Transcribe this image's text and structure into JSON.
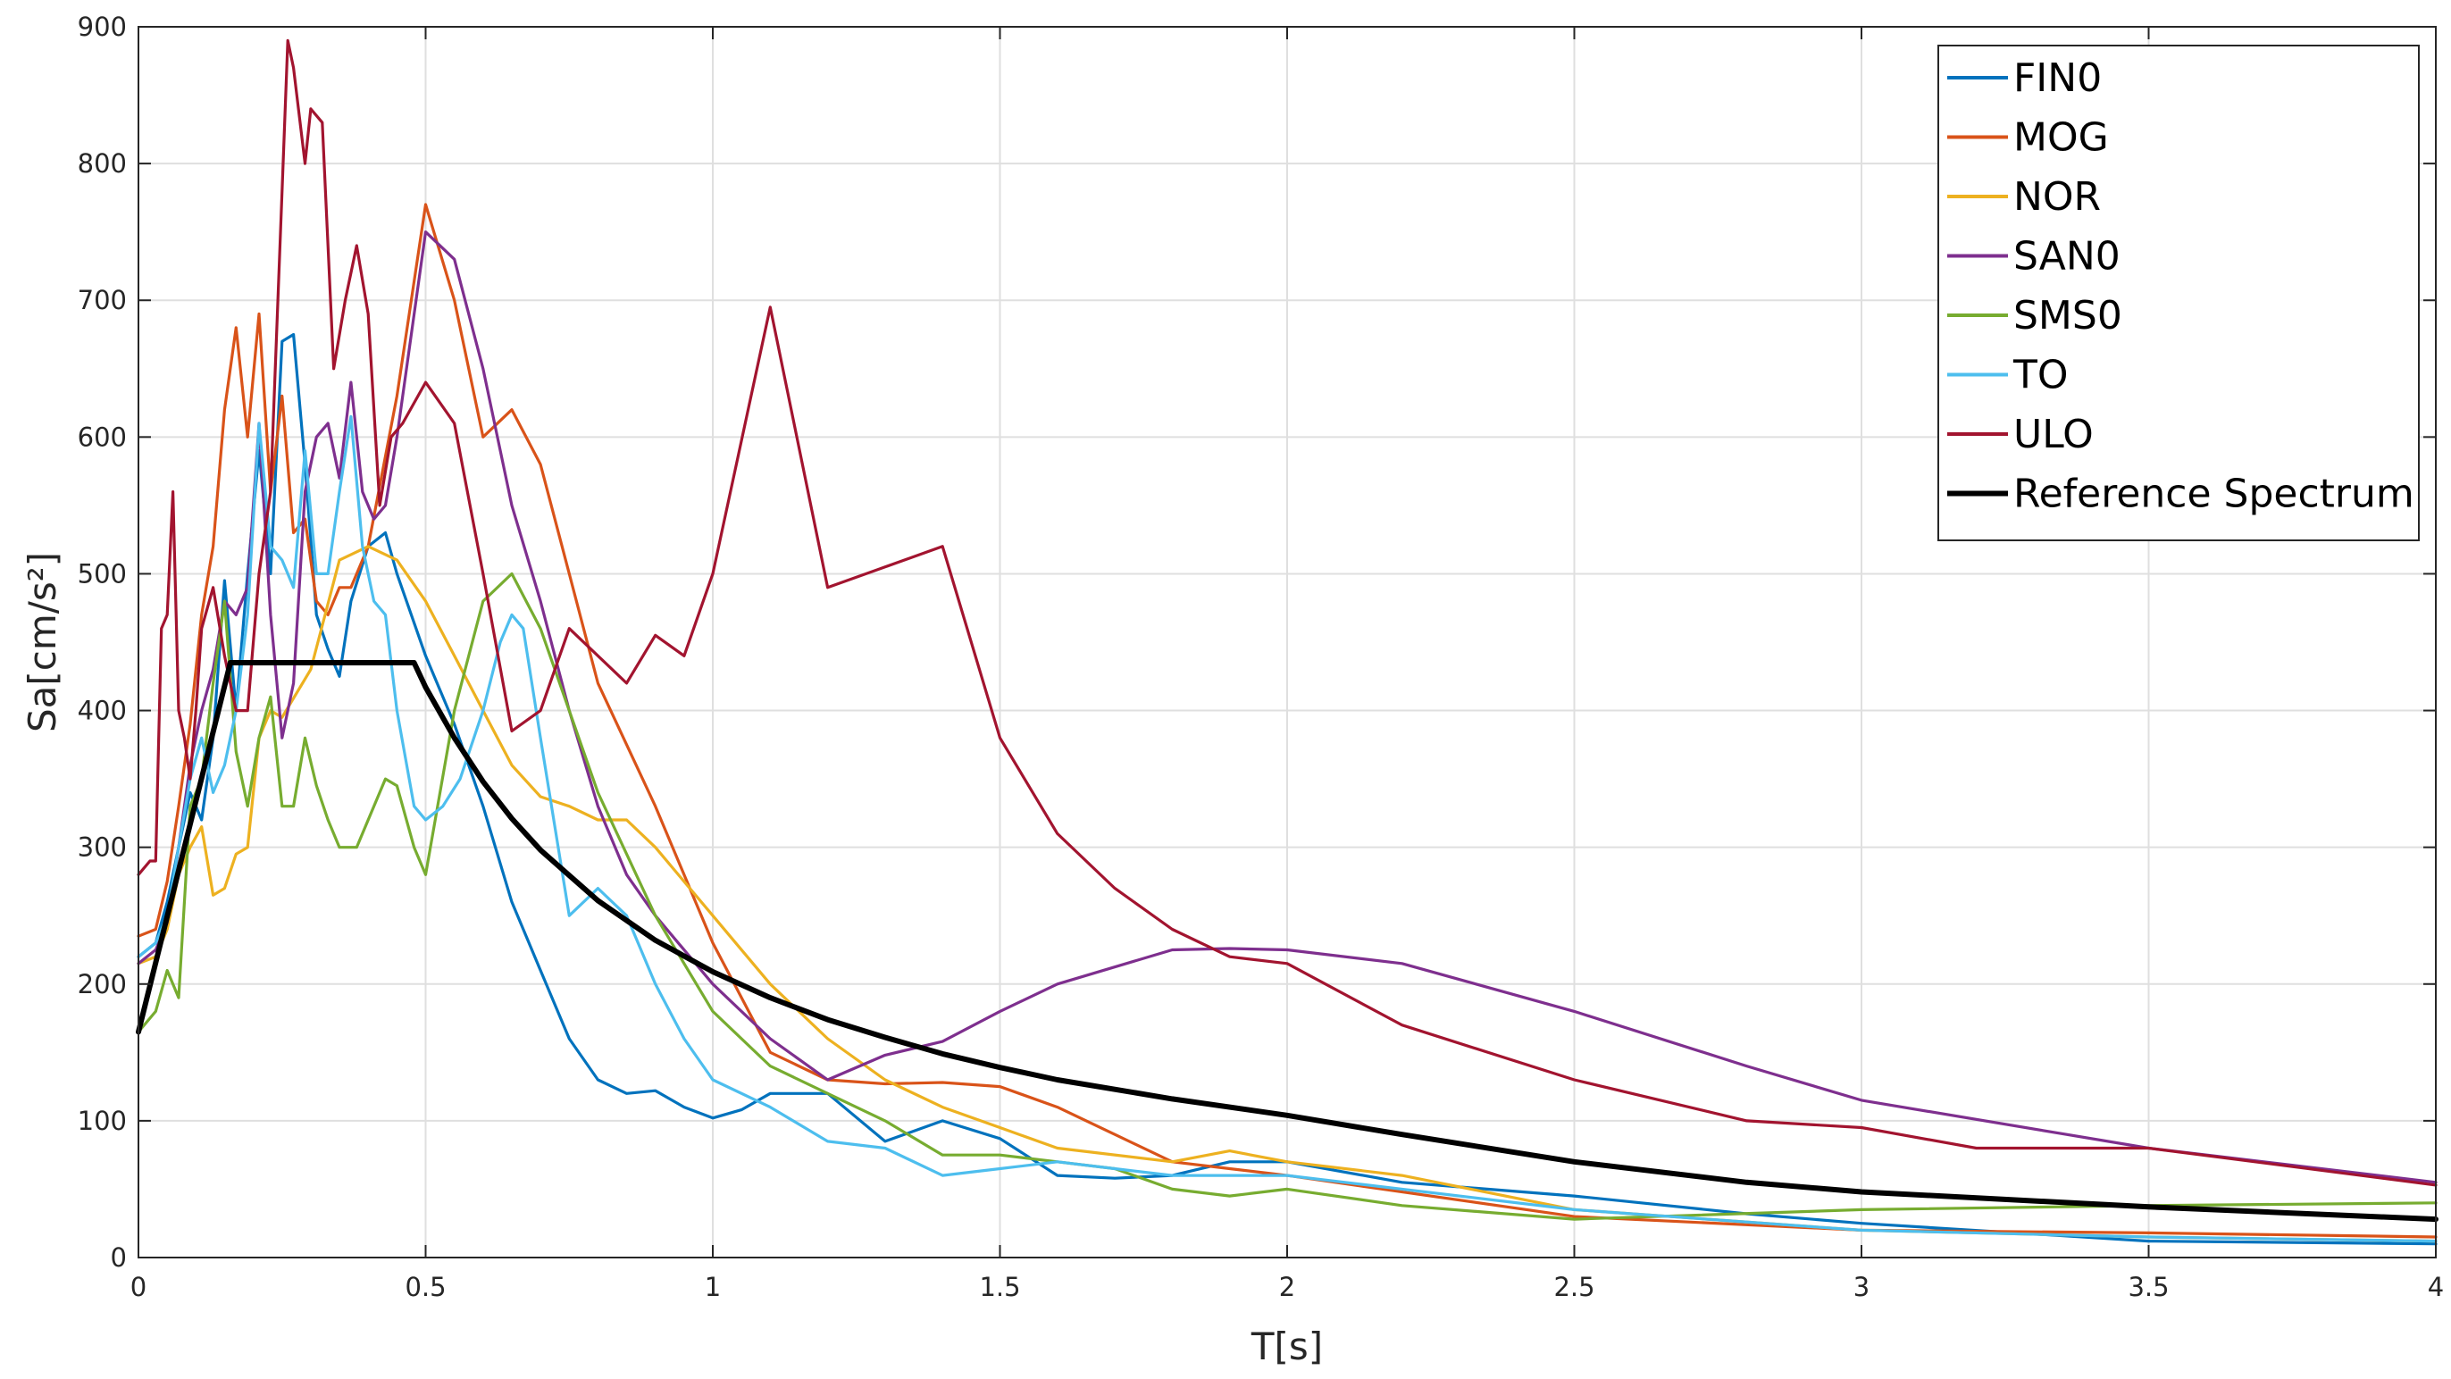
{
  "chart_data": {
    "type": "line",
    "xlabel": "T[s]",
    "ylabel": "Sa[cm/s²]",
    "xlim": [
      0,
      4
    ],
    "ylim": [
      0,
      900
    ],
    "xticks": [
      0,
      0.5,
      1,
      1.5,
      2,
      2.5,
      3,
      3.5,
      4
    ],
    "xtick_labels": [
      "0",
      "0.5",
      "1",
      "1.5",
      "2",
      "2.5",
      "3",
      "3.5",
      "4"
    ],
    "yticks": [
      0,
      100,
      200,
      300,
      400,
      500,
      600,
      700,
      800,
      900
    ],
    "ytick_labels": [
      "0",
      "100",
      "200",
      "300",
      "400",
      "500",
      "600",
      "700",
      "800",
      "900"
    ],
    "grid": true,
    "legend_position": "top-right",
    "series": [
      {
        "name": "FIN0",
        "color": "#0072BD",
        "x": [
          0,
          0.03,
          0.05,
          0.07,
          0.09,
          0.11,
          0.13,
          0.15,
          0.17,
          0.19,
          0.21,
          0.23,
          0.25,
          0.27,
          0.29,
          0.31,
          0.33,
          0.35,
          0.37,
          0.4,
          0.43,
          0.45,
          0.5,
          0.55,
          0.6,
          0.65,
          0.7,
          0.75,
          0.8,
          0.85,
          0.9,
          0.95,
          1.0,
          1.05,
          1.1,
          1.2,
          1.3,
          1.4,
          1.5,
          1.6,
          1.7,
          1.8,
          1.9,
          2.0,
          2.2,
          2.5,
          2.8,
          3.0,
          3.5,
          4.0
        ],
        "y": [
          220,
          230,
          260,
          300,
          340,
          320,
          380,
          495,
          400,
          500,
          590,
          500,
          670,
          675,
          580,
          470,
          445,
          425,
          480,
          520,
          530,
          500,
          440,
          390,
          330,
          260,
          210,
          160,
          130,
          120,
          122,
          110,
          102,
          108,
          120,
          120,
          85,
          100,
          87,
          60,
          58,
          60,
          70,
          70,
          55,
          45,
          32,
          25,
          12,
          10
        ]
      },
      {
        "name": "MOG",
        "color": "#D95319",
        "x": [
          0,
          0.03,
          0.05,
          0.07,
          0.09,
          0.11,
          0.13,
          0.15,
          0.17,
          0.19,
          0.21,
          0.23,
          0.25,
          0.27,
          0.29,
          0.31,
          0.33,
          0.35,
          0.37,
          0.4,
          0.45,
          0.5,
          0.55,
          0.6,
          0.65,
          0.7,
          0.75,
          0.8,
          0.9,
          1.0,
          1.1,
          1.2,
          1.3,
          1.4,
          1.5,
          1.6,
          1.7,
          1.8,
          1.9,
          2.0,
          2.5,
          3.0,
          3.5,
          4.0
        ],
        "y": [
          235,
          240,
          275,
          330,
          390,
          470,
          520,
          620,
          680,
          600,
          690,
          560,
          630,
          530,
          540,
          480,
          470,
          490,
          490,
          520,
          630,
          770,
          700,
          600,
          620,
          580,
          500,
          420,
          330,
          230,
          150,
          130,
          127,
          128,
          125,
          110,
          90,
          70,
          65,
          60,
          30,
          20,
          18,
          15
        ]
      },
      {
        "name": "NOR",
        "color": "#EDB120",
        "x": [
          0,
          0.03,
          0.05,
          0.07,
          0.09,
          0.11,
          0.13,
          0.15,
          0.17,
          0.19,
          0.21,
          0.23,
          0.25,
          0.3,
          0.35,
          0.4,
          0.45,
          0.5,
          0.55,
          0.6,
          0.65,
          0.7,
          0.75,
          0.8,
          0.85,
          0.9,
          1.0,
          1.1,
          1.2,
          1.3,
          1.4,
          1.5,
          1.6,
          1.8,
          1.9,
          2.0,
          2.2,
          2.5,
          3.0,
          3.5,
          4.0
        ],
        "y": [
          215,
          220,
          240,
          280,
          300,
          315,
          265,
          270,
          295,
          300,
          380,
          400,
          395,
          430,
          510,
          520,
          510,
          480,
          440,
          400,
          360,
          337,
          330,
          320,
          320,
          300,
          250,
          200,
          160,
          130,
          110,
          95,
          80,
          70,
          78,
          70,
          60,
          35,
          20,
          15,
          12
        ]
      },
      {
        "name": "SAN0",
        "color": "#7E2F8E",
        "x": [
          0,
          0.03,
          0.05,
          0.07,
          0.09,
          0.11,
          0.13,
          0.15,
          0.17,
          0.19,
          0.21,
          0.23,
          0.25,
          0.27,
          0.29,
          0.31,
          0.33,
          0.35,
          0.37,
          0.39,
          0.41,
          0.43,
          0.45,
          0.5,
          0.55,
          0.6,
          0.65,
          0.7,
          0.75,
          0.8,
          0.85,
          0.9,
          1.0,
          1.1,
          1.2,
          1.3,
          1.4,
          1.5,
          1.6,
          1.8,
          1.9,
          2.0,
          2.2,
          2.5,
          2.8,
          3.0,
          3.5,
          4.0
        ],
        "y": [
          215,
          225,
          245,
          300,
          360,
          400,
          430,
          480,
          470,
          490,
          610,
          470,
          380,
          420,
          560,
          600,
          610,
          570,
          640,
          560,
          540,
          550,
          600,
          750,
          730,
          650,
          550,
          480,
          400,
          330,
          280,
          250,
          200,
          160,
          130,
          148,
          158,
          180,
          200,
          225,
          226,
          225,
          215,
          180,
          140,
          115,
          80,
          55
        ]
      },
      {
        "name": "SMS0",
        "color": "#77AC30",
        "x": [
          0,
          0.03,
          0.05,
          0.07,
          0.09,
          0.11,
          0.13,
          0.15,
          0.17,
          0.19,
          0.21,
          0.23,
          0.25,
          0.27,
          0.29,
          0.31,
          0.33,
          0.35,
          0.38,
          0.4,
          0.43,
          0.45,
          0.48,
          0.5,
          0.55,
          0.6,
          0.65,
          0.7,
          0.8,
          0.9,
          1.0,
          1.1,
          1.2,
          1.3,
          1.4,
          1.5,
          1.6,
          1.7,
          1.8,
          1.9,
          2.0,
          2.2,
          2.5,
          3.0,
          3.5,
          4.0
        ],
        "y": [
          165,
          180,
          210,
          190,
          330,
          350,
          420,
          480,
          370,
          330,
          380,
          410,
          330,
          330,
          380,
          345,
          320,
          300,
          300,
          320,
          350,
          345,
          300,
          280,
          400,
          480,
          500,
          460,
          340,
          250,
          180,
          140,
          120,
          100,
          75,
          75,
          70,
          65,
          50,
          45,
          50,
          38,
          28,
          35,
          38,
          40
        ]
      },
      {
        "name": "TO",
        "color": "#4DBEEE",
        "x": [
          0,
          0.03,
          0.05,
          0.07,
          0.09,
          0.11,
          0.13,
          0.15,
          0.17,
          0.19,
          0.21,
          0.23,
          0.25,
          0.27,
          0.29,
          0.31,
          0.33,
          0.35,
          0.37,
          0.39,
          0.41,
          0.43,
          0.45,
          0.48,
          0.5,
          0.53,
          0.56,
          0.6,
          0.63,
          0.65,
          0.67,
          0.7,
          0.75,
          0.8,
          0.85,
          0.9,
          0.95,
          1.0,
          1.1,
          1.2,
          1.3,
          1.4,
          1.5,
          1.6,
          1.7,
          1.8,
          2.0,
          2.5,
          3.0,
          3.5,
          4.0
        ],
        "y": [
          220,
          230,
          250,
          300,
          350,
          380,
          340,
          360,
          400,
          470,
          610,
          520,
          510,
          490,
          590,
          500,
          500,
          560,
          615,
          520,
          480,
          470,
          400,
          330,
          320,
          330,
          350,
          400,
          450,
          470,
          460,
          380,
          250,
          270,
          250,
          200,
          160,
          130,
          110,
          85,
          80,
          60,
          65,
          70,
          65,
          60,
          60,
          35,
          20,
          15,
          12
        ]
      },
      {
        "name": "ULO",
        "color": "#A2142F",
        "x": [
          0,
          0.02,
          0.03,
          0.04,
          0.05,
          0.06,
          0.07,
          0.08,
          0.09,
          0.1,
          0.11,
          0.13,
          0.15,
          0.17,
          0.19,
          0.21,
          0.23,
          0.25,
          0.26,
          0.27,
          0.29,
          0.3,
          0.32,
          0.34,
          0.36,
          0.38,
          0.4,
          0.42,
          0.44,
          0.46,
          0.5,
          0.55,
          0.6,
          0.65,
          0.7,
          0.75,
          0.85,
          0.9,
          0.95,
          1.0,
          1.1,
          1.2,
          1.3,
          1.4,
          1.5,
          1.6,
          1.7,
          1.8,
          1.9,
          2.0,
          2.2,
          2.5,
          2.8,
          3.0,
          3.2,
          3.5,
          4.0
        ],
        "y": [
          280,
          290,
          290,
          460,
          470,
          560,
          400,
          380,
          350,
          400,
          460,
          490,
          440,
          400,
          400,
          500,
          560,
          780,
          890,
          870,
          800,
          840,
          830,
          650,
          700,
          740,
          690,
          550,
          600,
          610,
          640,
          610,
          500,
          385,
          400,
          460,
          420,
          455,
          440,
          500,
          695,
          490,
          505,
          520,
          380,
          310,
          270,
          240,
          220,
          215,
          170,
          130,
          100,
          95,
          80,
          80,
          53
        ]
      },
      {
        "name": "Reference Spectrum",
        "color": "#000000",
        "x": [
          0,
          0.16,
          0.48,
          0.5,
          0.55,
          0.6,
          0.65,
          0.7,
          0.8,
          0.9,
          1.0,
          1.1,
          1.2,
          1.3,
          1.4,
          1.5,
          1.6,
          1.8,
          2.0,
          2.2,
          2.5,
          2.8,
          3.0,
          3.5,
          4.0
        ],
        "y": [
          165,
          435,
          435,
          417,
          380,
          348,
          321,
          298,
          261,
          232,
          209,
          190,
          174,
          161,
          149,
          139,
          130,
          116,
          104,
          90,
          70,
          55,
          48,
          37,
          28
        ]
      }
    ]
  }
}
